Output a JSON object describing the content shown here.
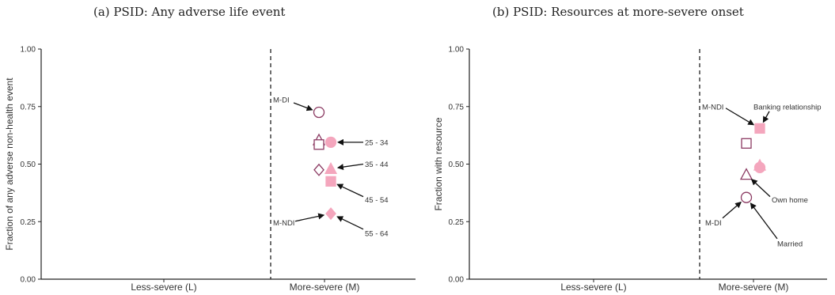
{
  "chart_data": [
    {
      "type": "scatter",
      "title": "(a) PSID: Any adverse life event",
      "xlabel": "",
      "ylabel": "Fraction of any adverse non-health event",
      "categories": [
        "Less-severe (L)",
        "More-severe (M)"
      ],
      "ylim": [
        0,
        1
      ],
      "yticks": [
        "0.00",
        "0.25",
        "0.50",
        "0.75",
        "1.00"
      ],
      "divider_between_categories": true,
      "grid": false,
      "colors": {
        "dark": "#8b3a62",
        "light": "#f4a6bd"
      },
      "points": [
        {
          "group": "DI",
          "category": "More-severe (M)",
          "shape": "circle",
          "filled": false,
          "y": 0.725
        },
        {
          "group": "DI",
          "category": "More-severe (M)",
          "shape": "triangle",
          "filled": false,
          "y": 0.605
        },
        {
          "group": "DI",
          "category": "More-severe (M)",
          "shape": "square",
          "filled": false,
          "y": 0.585
        },
        {
          "group": "DI",
          "category": "More-severe (M)",
          "shape": "diamond",
          "filled": false,
          "y": 0.475
        },
        {
          "group": "NDI",
          "category": "More-severe (M)",
          "shape": "circle",
          "filled": true,
          "y": 0.595
        },
        {
          "group": "NDI",
          "category": "More-severe (M)",
          "shape": "triangle",
          "filled": true,
          "y": 0.48
        },
        {
          "group": "NDI",
          "category": "More-severe (M)",
          "shape": "square",
          "filled": true,
          "y": 0.425
        },
        {
          "group": "NDI",
          "category": "More-severe (M)",
          "shape": "diamond",
          "filled": true,
          "y": 0.285
        }
      ],
      "annotations": [
        {
          "text": "M-DI",
          "label_y": 0.78,
          "target_y": 0.725
        },
        {
          "text": "25 - 34",
          "label_y": 0.595,
          "target_y": 0.595
        },
        {
          "text": "35 - 44",
          "label_y": 0.5,
          "target_y": 0.48
        },
        {
          "text": "45 - 54",
          "label_y": 0.345,
          "target_y": 0.425
        },
        {
          "text": "M-NDI",
          "label_y": 0.245,
          "target_y": 0.285
        },
        {
          "text": "55 - 64",
          "label_y": 0.2,
          "target_y": 0.285
        }
      ]
    },
    {
      "type": "scatter",
      "title": "(b) PSID: Resources at more-severe onset",
      "xlabel": "",
      "ylabel": "Fraction with resource",
      "categories": [
        "Less-severe (L)",
        "More-severe (M)"
      ],
      "ylim": [
        0,
        1
      ],
      "yticks": [
        "0.00",
        "0.25",
        "0.50",
        "0.75",
        "1.00"
      ],
      "divider_between_categories": true,
      "grid": false,
      "colors": {
        "dark": "#8b3a62",
        "light": "#f4a6bd"
      },
      "points": [
        {
          "group": "DI",
          "category": "More-severe (M)",
          "shape": "square",
          "filled": false,
          "y": 0.59
        },
        {
          "group": "DI",
          "category": "More-severe (M)",
          "shape": "triangle",
          "filled": false,
          "y": 0.455
        },
        {
          "group": "DI",
          "category": "More-severe (M)",
          "shape": "circle",
          "filled": false,
          "y": 0.355
        },
        {
          "group": "NDI",
          "category": "More-severe (M)",
          "shape": "square",
          "filled": true,
          "y": 0.655
        },
        {
          "group": "NDI",
          "category": "More-severe (M)",
          "shape": "triangle",
          "filled": true,
          "y": 0.495
        },
        {
          "group": "NDI",
          "category": "More-severe (M)",
          "shape": "circle",
          "filled": true,
          "y": 0.485
        }
      ],
      "annotations": [
        {
          "text": "M-NDI",
          "label_y": 0.75,
          "target_y": 0.655
        },
        {
          "text": "Banking relationship",
          "label_y": 0.75,
          "target_y": 0.655
        },
        {
          "text": "Own home",
          "label_y": 0.345,
          "target_y": 0.455
        },
        {
          "text": "M-DI",
          "label_y": 0.245,
          "target_y": 0.355
        },
        {
          "text": "Married",
          "label_y": 0.155,
          "target_y": 0.355
        }
      ]
    }
  ]
}
